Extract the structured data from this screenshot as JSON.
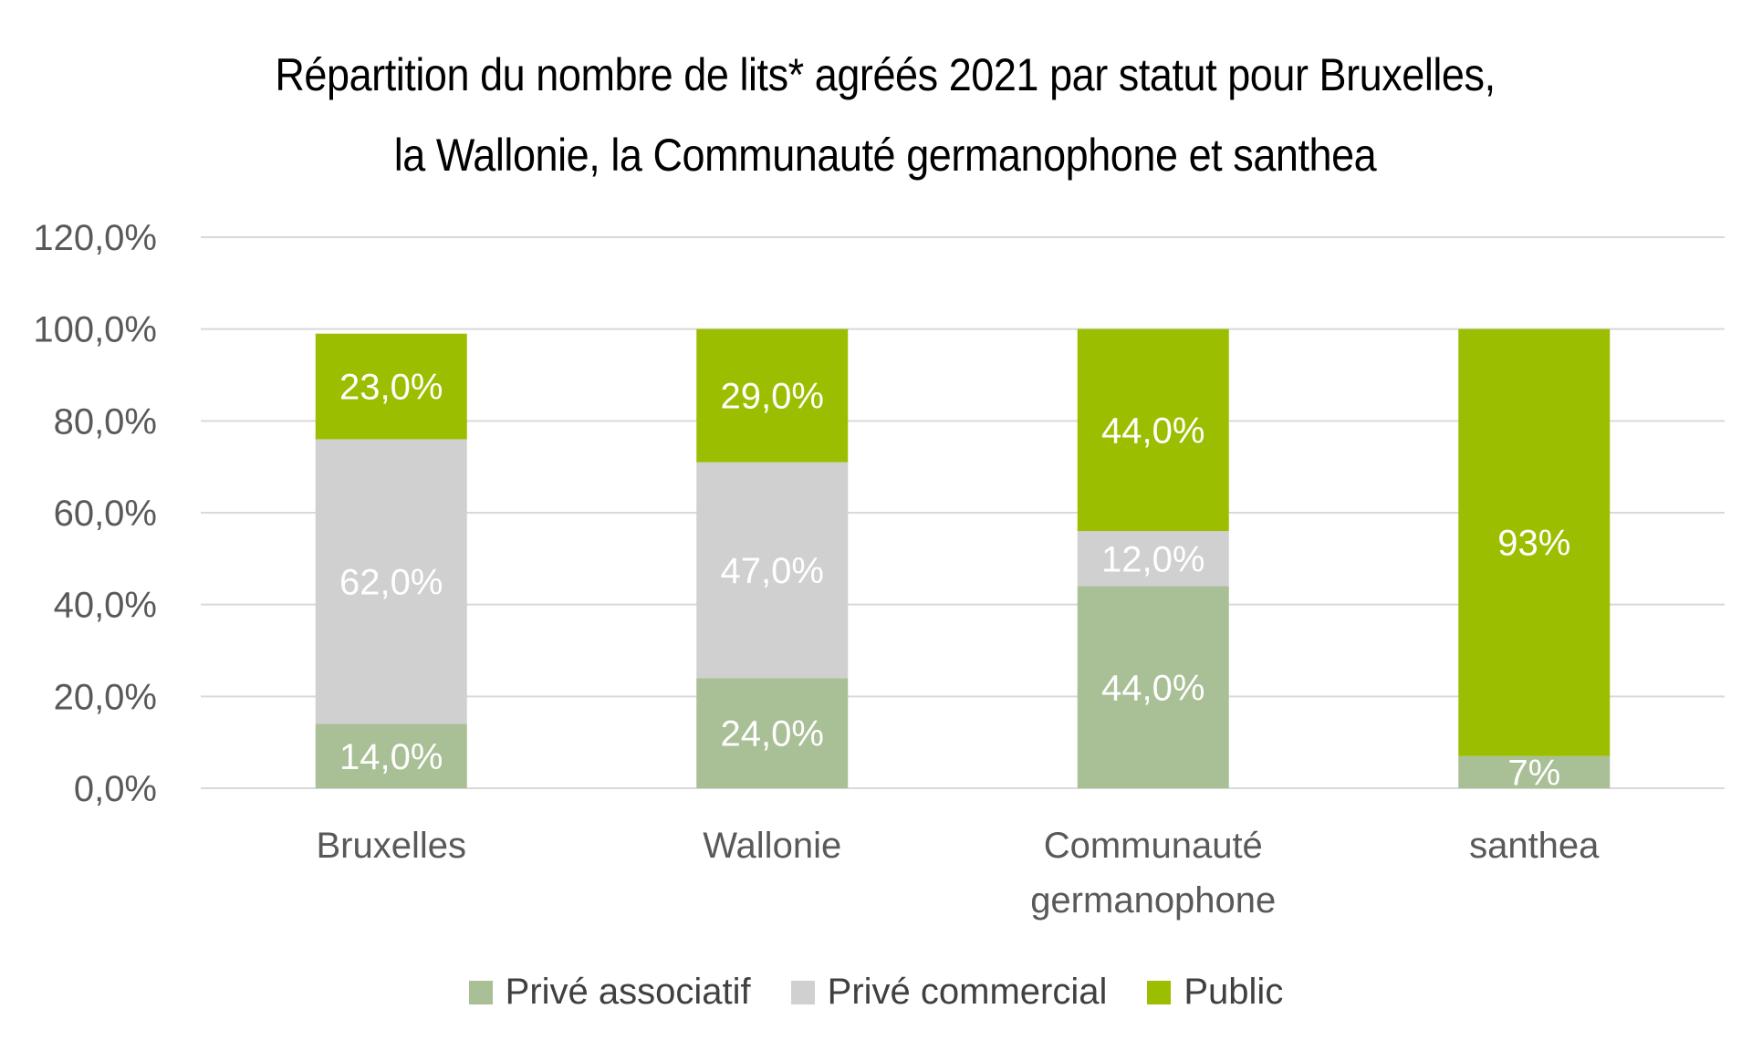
{
  "chart_data": {
    "type": "bar",
    "stacked": true,
    "title_lines": [
      "Répartition du nombre de lits* agréés 2021 par statut pour Bruxelles,",
      "la Wallonie, la Communauté germanophone et santhea"
    ],
    "categories": [
      [
        "Bruxelles"
      ],
      [
        "Wallonie"
      ],
      [
        "Communauté",
        "germanophone"
      ],
      [
        "santhea"
      ]
    ],
    "series": [
      {
        "name": "Privé associatif",
        "color": "#a9bf96",
        "values": [
          14,
          24,
          44,
          7
        ],
        "labels": [
          "14,0%",
          "24,0%",
          "44,0%",
          "7%"
        ]
      },
      {
        "name": "Privé commercial",
        "color": "#d1d0d1",
        "values": [
          62,
          47,
          12,
          0
        ],
        "labels": [
          "62,0%",
          "47,0%",
          "12,0%",
          ""
        ]
      },
      {
        "name": "Public",
        "color": "#9bbf00",
        "values": [
          23,
          29,
          44,
          93
        ],
        "labels": [
          "23,0%",
          "29,0%",
          "44,0%",
          "93%"
        ]
      }
    ],
    "yticks": [
      "0,0%",
      "20,0%",
      "40,0%",
      "60,0%",
      "80,0%",
      "100,0%",
      "120,0%"
    ],
    "ylim": [
      0,
      120
    ],
    "grid": true,
    "legend_position": "bottom"
  }
}
